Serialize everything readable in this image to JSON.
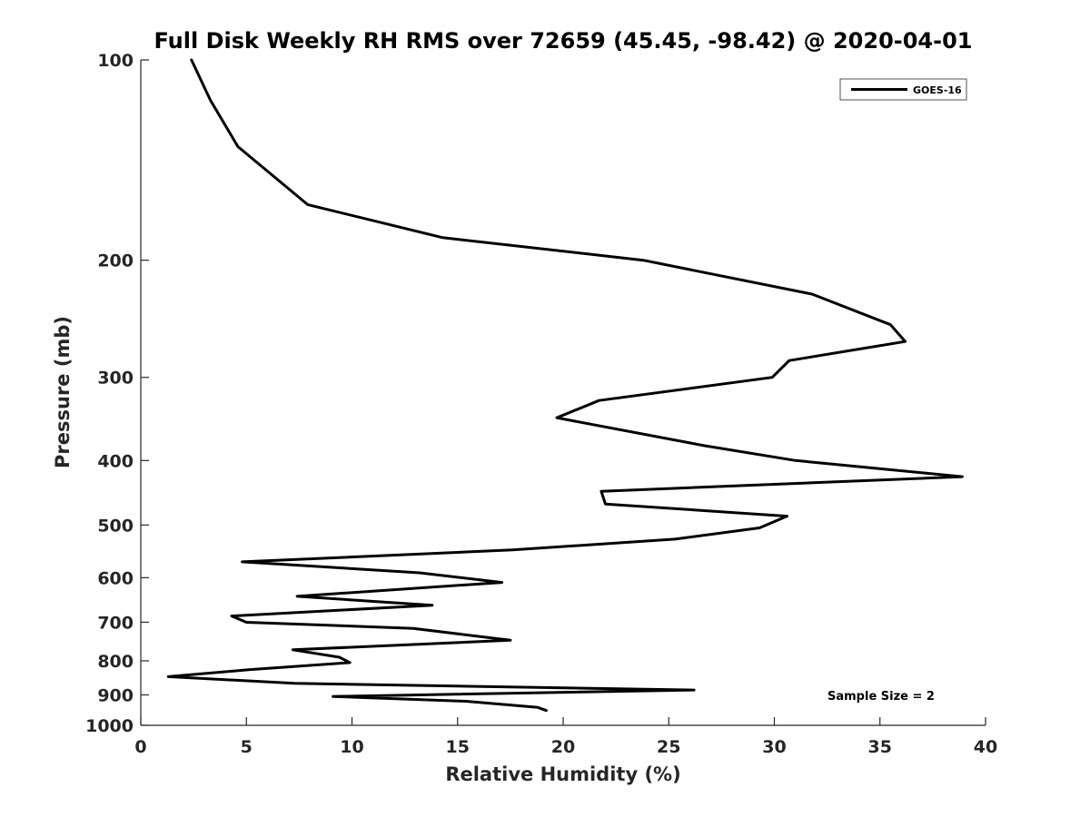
{
  "chart_data": {
    "type": "line",
    "title": "Full Disk Weekly RH RMS over 72659 (45.45, -98.42) @ 2020-04-01",
    "xlabel": "Relative Humidity (%)",
    "ylabel": "Pressure (mb)",
    "xlim": [
      0,
      40
    ],
    "ylim": [
      100,
      1000
    ],
    "y_scale": "log",
    "y_reversed": true,
    "grid": false,
    "xticks": [
      0,
      5,
      10,
      15,
      20,
      25,
      30,
      35,
      40
    ],
    "xtick_labels": [
      "0",
      "5",
      "10",
      "15",
      "20",
      "25",
      "30",
      "35",
      "40"
    ],
    "yticks": [
      100,
      200,
      300,
      400,
      500,
      600,
      700,
      800,
      900,
      1000
    ],
    "ytick_labels": [
      "100",
      "200",
      "300",
      "400",
      "500",
      "600",
      "700",
      "800",
      "900",
      "1000"
    ],
    "legend_position": "top-right",
    "annotation": "Sample Size = 2",
    "series": [
      {
        "name": "GOES-16",
        "color": "#000000",
        "x": [
          2.4,
          3.3,
          4.6,
          7.9,
          14.3,
          23.8,
          31.8,
          35.5,
          36.2,
          30.7,
          29.9,
          21.7,
          19.7,
          26.7,
          31.0,
          38.9,
          21.8,
          22.0,
          30.6,
          29.3,
          25.3,
          17.6,
          4.8,
          13.2,
          17.1,
          7.4,
          13.8,
          4.3,
          5.0,
          12.9,
          17.5,
          7.2,
          9.4,
          9.9,
          5.1,
          1.3,
          7.3,
          26.2,
          9.1,
          15.4,
          18.8,
          19.2
        ],
        "y": [
          100,
          115,
          135,
          165,
          185,
          200,
          225,
          250,
          265,
          283,
          300,
          325,
          345,
          380,
          400,
          423,
          445,
          465,
          485,
          505,
          525,
          545,
          568,
          590,
          610,
          640,
          660,
          685,
          700,
          715,
          745,
          770,
          790,
          805,
          825,
          845,
          865,
          885,
          905,
          920,
          940,
          950
        ]
      }
    ]
  }
}
